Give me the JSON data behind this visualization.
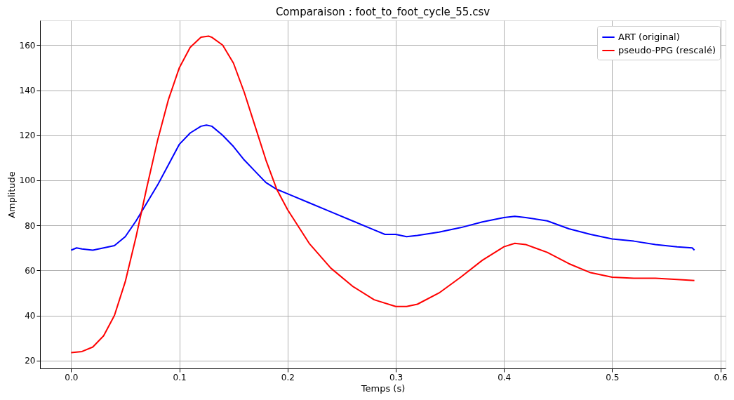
{
  "chart_data": {
    "type": "line",
    "title": "Comparaison : foot_to_foot_cycle_55.csv",
    "xlabel": "Temps (s)",
    "ylabel": "Amplitude",
    "xlim": [
      -0.0288,
      0.6048
    ],
    "xticks": [
      {
        "value": 0,
        "label": "0.0"
      },
      0.1,
      0.2,
      0.3,
      0.4,
      0.5,
      0.6
    ],
    "ylim": [
      16.5,
      171
    ],
    "yticks": [
      20,
      40,
      60,
      80,
      100,
      120,
      140,
      160
    ],
    "grid": true,
    "legend": "top right",
    "line_style": "solid",
    "marker": "none",
    "series": [
      {
        "name": "ART (original)",
        "color": "#0000ff",
        "x": [
          0,
          0.005,
          0.01,
          0.02,
          0.03,
          0.04,
          0.05,
          0.06,
          0.07,
          0.08,
          0.09,
          0.1,
          0.11,
          0.12,
          0.125,
          0.13,
          0.14,
          0.15,
          0.16,
          0.17,
          0.18,
          0.19,
          0.2,
          0.22,
          0.24,
          0.26,
          0.28,
          0.29,
          0.3,
          0.31,
          0.32,
          0.34,
          0.36,
          0.38,
          0.4,
          0.41,
          0.42,
          0.44,
          0.46,
          0.48,
          0.5,
          0.52,
          0.54,
          0.56,
          0.574,
          0.576
        ],
        "values": [
          69,
          70,
          69.5,
          69,
          70,
          71,
          75,
          82,
          90,
          98,
          107,
          116,
          121,
          124,
          124.5,
          124,
          120,
          115,
          109,
          104,
          99,
          96,
          94,
          90,
          86,
          82,
          78,
          76,
          76,
          75,
          75.5,
          77,
          79,
          81.5,
          83.5,
          84,
          83.5,
          82,
          78.5,
          76,
          74,
          73,
          71.5,
          70.5,
          70,
          69
        ]
      },
      {
        "name": "pseudo-PPG (rescalé)",
        "color": "#ff0000",
        "x": [
          0,
          0.01,
          0.02,
          0.03,
          0.04,
          0.05,
          0.06,
          0.07,
          0.08,
          0.09,
          0.1,
          0.11,
          0.12,
          0.127,
          0.13,
          0.14,
          0.15,
          0.16,
          0.17,
          0.18,
          0.19,
          0.2,
          0.22,
          0.24,
          0.26,
          0.28,
          0.3,
          0.31,
          0.32,
          0.34,
          0.36,
          0.38,
          0.4,
          0.41,
          0.42,
          0.44,
          0.46,
          0.48,
          0.5,
          0.52,
          0.54,
          0.56,
          0.576
        ],
        "values": [
          23.5,
          24,
          26,
          31,
          40,
          55,
          75,
          97,
          118,
          136,
          150,
          159,
          163.5,
          164,
          163.5,
          160,
          152,
          139,
          124,
          109,
          96,
          87,
          72,
          61,
          53,
          47,
          44,
          44,
          45,
          50,
          57,
          64.5,
          70.5,
          72,
          71.5,
          68,
          63,
          59,
          57,
          56.5,
          56.5,
          56,
          55.5
        ]
      }
    ]
  }
}
